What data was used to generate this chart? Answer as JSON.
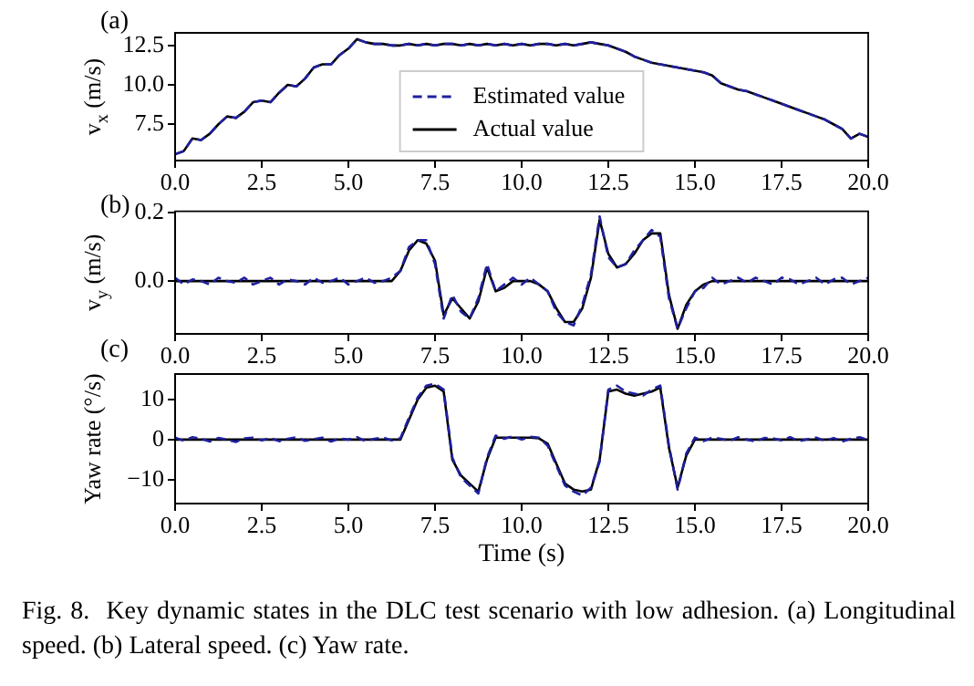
{
  "chart_data": [
    {
      "type": "line",
      "title": "(a)",
      "ylabel": "v$_{x}$ (m/s)",
      "legend": "bottom",
      "marker": "none",
      "x": [
        0,
        0.25,
        0.5,
        0.75,
        1,
        1.25,
        1.5,
        1.75,
        2,
        2.25,
        2.5,
        2.75,
        3,
        3.25,
        3.5,
        3.75,
        4,
        4.25,
        4.5,
        4.75,
        5,
        5.25,
        5.5,
        5.75,
        6,
        6.25,
        6.5,
        6.75,
        7,
        7.25,
        7.5,
        7.75,
        8,
        8.25,
        8.5,
        8.75,
        9,
        9.25,
        9.5,
        9.75,
        10,
        10.25,
        10.5,
        10.75,
        11,
        11.25,
        11.5,
        11.75,
        12,
        12.25,
        12.5,
        12.75,
        13,
        13.25,
        13.5,
        13.75,
        14,
        14.25,
        14.5,
        14.75,
        15,
        15.25,
        15.5,
        15.75,
        16,
        16.25,
        16.5,
        16.75,
        17,
        17.25,
        17.5,
        17.75,
        18,
        18.25,
        18.5,
        18.75,
        19,
        19.25,
        19.5,
        19.75,
        20
      ],
      "series": [
        {
          "name": "Estimated value",
          "color": "#2020a0",
          "line_style": "dashed",
          "values": [
            5.6,
            5.8,
            6.6,
            6.5,
            6.9,
            7.5,
            8.0,
            7.9,
            8.3,
            8.9,
            9.0,
            8.9,
            9.5,
            10.0,
            9.9,
            10.4,
            11.1,
            11.3,
            11.3,
            11.9,
            12.3,
            12.9,
            12.7,
            12.6,
            12.6,
            12.5,
            12.5,
            12.6,
            12.5,
            12.6,
            12.5,
            12.6,
            12.6,
            12.5,
            12.6,
            12.5,
            12.6,
            12.5,
            12.6,
            12.5,
            12.6,
            12.5,
            12.6,
            12.6,
            12.5,
            12.6,
            12.5,
            12.6,
            12.7,
            12.6,
            12.5,
            12.3,
            12.1,
            11.8,
            11.6,
            11.4,
            11.3,
            11.2,
            11.1,
            11.0,
            10.9,
            10.8,
            10.6,
            10.1,
            9.9,
            9.7,
            9.6,
            9.4,
            9.2,
            9.0,
            8.8,
            8.6,
            8.4,
            8.2,
            8.0,
            7.8,
            7.5,
            7.2,
            6.6,
            6.9,
            6.7
          ]
        },
        {
          "name": "Actual value",
          "color": "#000000",
          "line_style": "solid",
          "values": [
            5.6,
            5.8,
            6.6,
            6.5,
            6.9,
            7.5,
            8.0,
            7.9,
            8.3,
            8.9,
            9.0,
            8.9,
            9.5,
            10.0,
            9.9,
            10.4,
            11.1,
            11.3,
            11.3,
            11.9,
            12.3,
            12.9,
            12.7,
            12.6,
            12.6,
            12.5,
            12.5,
            12.6,
            12.5,
            12.6,
            12.5,
            12.6,
            12.6,
            12.5,
            12.6,
            12.5,
            12.6,
            12.5,
            12.6,
            12.5,
            12.6,
            12.5,
            12.6,
            12.6,
            12.5,
            12.6,
            12.5,
            12.6,
            12.7,
            12.6,
            12.5,
            12.3,
            12.1,
            11.8,
            11.6,
            11.4,
            11.3,
            11.2,
            11.1,
            11.0,
            10.9,
            10.8,
            10.6,
            10.1,
            9.9,
            9.7,
            9.6,
            9.4,
            9.2,
            9.0,
            8.8,
            8.6,
            8.4,
            8.2,
            8.0,
            7.8,
            7.5,
            7.2,
            6.6,
            6.9,
            6.7
          ]
        }
      ],
      "xlim": [
        0,
        20
      ],
      "xticks": [
        {
          "value": 0,
          "label": "0.0"
        },
        {
          "value": 2.5,
          "label": "2.5"
        },
        {
          "value": 5,
          "label": "5.0"
        },
        {
          "value": 7.5,
          "label": "7.5"
        },
        {
          "value": 10,
          "label": "10.0"
        },
        {
          "value": 12.5,
          "label": "12.5"
        },
        {
          "value": 15,
          "label": "15.0"
        },
        {
          "value": 17.5,
          "label": "17.5"
        },
        {
          "value": 20,
          "label": "20.0"
        }
      ],
      "ylim": [
        5.2,
        13.3
      ],
      "yticks": [
        {
          "value": 7.5,
          "label": "7.5"
        },
        {
          "value": 10,
          "label": "10.0"
        },
        {
          "value": 12.5,
          "label": "12.5"
        }
      ]
    },
    {
      "type": "line",
      "title": "(b)",
      "ylabel": "v$_{y}$ (m/s)",
      "marker": "none",
      "x": [
        0,
        0.25,
        0.5,
        0.75,
        1,
        1.25,
        1.5,
        1.75,
        2,
        2.25,
        2.5,
        2.75,
        3,
        3.25,
        3.5,
        3.75,
        4,
        4.25,
        4.5,
        4.75,
        5,
        5.25,
        5.5,
        5.75,
        6,
        6.25,
        6.5,
        6.75,
        7,
        7.25,
        7.5,
        7.75,
        8,
        8.25,
        8.5,
        8.75,
        9,
        9.25,
        9.5,
        9.75,
        10,
        10.25,
        10.5,
        10.75,
        11,
        11.25,
        11.5,
        11.75,
        12,
        12.25,
        12.5,
        12.75,
        13,
        13.25,
        13.5,
        13.75,
        14,
        14.25,
        14.5,
        14.75,
        15,
        15.25,
        15.5,
        15.75,
        16,
        16.25,
        16.5,
        16.75,
        17,
        17.25,
        17.5,
        17.75,
        18,
        18.25,
        18.5,
        18.75,
        19,
        19.25,
        19.5,
        19.75,
        20
      ],
      "series": [
        {
          "color": "#2020a0",
          "line_style": "dashed",
          "values": [
            0.01,
            -0.01,
            0.005,
            0.0,
            -0.01,
            0.01,
            0.0,
            -0.005,
            0.01,
            -0.01,
            0.0,
            0.01,
            -0.01,
            0.005,
            0.0,
            -0.01,
            0.01,
            -0.005,
            0.0,
            0.01,
            -0.01,
            0.0,
            0.01,
            -0.005,
            0.0,
            0.01,
            0.03,
            0.1,
            0.12,
            0.12,
            0.05,
            -0.11,
            -0.04,
            -0.09,
            -0.11,
            -0.05,
            0.05,
            -0.03,
            -0.01,
            0.01,
            -0.01,
            0.01,
            -0.01,
            -0.03,
            -0.09,
            -0.12,
            -0.13,
            -0.07,
            0.02,
            0.19,
            0.07,
            0.04,
            0.05,
            0.09,
            0.12,
            0.15,
            0.13,
            -0.05,
            -0.14,
            -0.08,
            -0.03,
            -0.02,
            0.01,
            -0.01,
            0.0,
            0.01,
            -0.005,
            0.01,
            0.0,
            -0.01,
            0.01,
            0.005,
            -0.01,
            0.0,
            0.01,
            -0.01,
            0.005,
            0.01,
            -0.01,
            0.0,
            0.01
          ]
        },
        {
          "color": "#000000",
          "line_style": "solid",
          "values": [
            0,
            0,
            0,
            0,
            0,
            0,
            0,
            0,
            0,
            0,
            0,
            0,
            0,
            0,
            0,
            0,
            0,
            0,
            0,
            0,
            0,
            0,
            0,
            0,
            0,
            0,
            0.03,
            0.09,
            0.12,
            0.11,
            0.06,
            -0.1,
            -0.05,
            -0.08,
            -0.11,
            -0.06,
            0.04,
            -0.03,
            -0.02,
            0.0,
            0.0,
            0.0,
            -0.01,
            -0.03,
            -0.08,
            -0.12,
            -0.12,
            -0.08,
            0.01,
            0.18,
            0.08,
            0.04,
            0.05,
            0.08,
            0.12,
            0.14,
            0.14,
            -0.04,
            -0.14,
            -0.07,
            -0.03,
            -0.01,
            0,
            0,
            0,
            0,
            0,
            0,
            0,
            0,
            0,
            0,
            0,
            0,
            0,
            0,
            0,
            0,
            0,
            0,
            0
          ]
        }
      ],
      "xlim": [
        0,
        20
      ],
      "xticks": [
        {
          "value": 0,
          "label": "0.0"
        },
        {
          "value": 2.5,
          "label": "2.5"
        },
        {
          "value": 5,
          "label": "5.0"
        },
        {
          "value": 7.5,
          "label": "7.5"
        },
        {
          "value": 10,
          "label": "10.0"
        },
        {
          "value": 12.5,
          "label": "12.5"
        },
        {
          "value": 15,
          "label": "15.0"
        },
        {
          "value": 17.5,
          "label": "17.5"
        },
        {
          "value": 20,
          "label": "20.0"
        }
      ],
      "ylim": [
        -0.155,
        0.205
      ],
      "yticks": [
        {
          "value": 0,
          "label": "0.0"
        },
        {
          "value": 0.2,
          "label": "0.2"
        }
      ]
    },
    {
      "type": "line",
      "title": "(c)",
      "xlabel": "Time (s)",
      "ylabel": "Yaw rate (°/s)",
      "marker": "none",
      "x": [
        0,
        0.25,
        0.5,
        0.75,
        1,
        1.25,
        1.5,
        1.75,
        2,
        2.25,
        2.5,
        2.75,
        3,
        3.25,
        3.5,
        3.75,
        4,
        4.25,
        4.5,
        4.75,
        5,
        5.25,
        5.5,
        5.75,
        6,
        6.25,
        6.5,
        6.75,
        7,
        7.25,
        7.5,
        7.75,
        8,
        8.25,
        8.5,
        8.75,
        9,
        9.25,
        9.5,
        9.75,
        10,
        10.25,
        10.5,
        10.75,
        11,
        11.25,
        11.5,
        11.75,
        12,
        12.25,
        12.5,
        12.75,
        13,
        13.25,
        13.5,
        13.75,
        14,
        14.25,
        14.5,
        14.75,
        15,
        15.25,
        15.5,
        15.75,
        16,
        16.25,
        16.5,
        16.75,
        17,
        17.25,
        17.5,
        17.75,
        18,
        18.25,
        18.5,
        18.75,
        19,
        19.25,
        19.5,
        19.75,
        20
      ],
      "series": [
        {
          "color": "#2020a0",
          "line_style": "dashed",
          "values": [
            0.5,
            -0.3,
            0.6,
            0.2,
            -0.5,
            0.4,
            0.0,
            -0.6,
            0.3,
            0.5,
            -0.2,
            0.4,
            -0.4,
            0.2,
            0.6,
            -0.3,
            0.1,
            0.5,
            -0.5,
            0.3,
            0.0,
            0.6,
            -0.4,
            0.2,
            0.5,
            -0.2,
            0.3,
            5.5,
            10.5,
            13.5,
            14,
            12.5,
            -4.5,
            -9.5,
            -11.5,
            -13.5,
            -4.5,
            1,
            0.2,
            0.8,
            0.0,
            0.7,
            0.5,
            -1.5,
            -6.5,
            -11.5,
            -13,
            -14,
            -12,
            -5.5,
            12.5,
            13.5,
            12,
            11.5,
            11,
            12.5,
            13.5,
            -1.5,
            -12.5,
            -3.5,
            0.5,
            -0.4,
            0.5,
            0.2,
            -0.3,
            0.6,
            0.0,
            -0.5,
            0.4,
            0.3,
            -0.2,
            0.6,
            -0.4,
            0.1,
            0.5,
            -0.3,
            0.4,
            -0.5,
            0.2,
            0.6,
            -0.1
          ]
        },
        {
          "color": "#000000",
          "line_style": "solid",
          "values": [
            0,
            0,
            0,
            0,
            0,
            0,
            0,
            0,
            0,
            0,
            0,
            0,
            0,
            0,
            0,
            0,
            0,
            0,
            0,
            0,
            0,
            0,
            0,
            0,
            0,
            0,
            0,
            5,
            10,
            13,
            13.5,
            12,
            -5,
            -9,
            -11,
            -13,
            -5,
            0.5,
            0.5,
            0.5,
            0.5,
            0.5,
            0.3,
            -1,
            -6,
            -11,
            -12.5,
            -13,
            -12.5,
            -5,
            12,
            12.5,
            11.5,
            11,
            11.5,
            12,
            13,
            -2,
            -12,
            -4,
            0,
            0,
            0,
            0,
            0,
            0,
            0,
            0,
            0,
            0,
            0,
            0,
            0,
            0,
            0,
            0,
            0,
            0,
            0,
            0,
            0
          ]
        }
      ],
      "xlim": [
        0,
        20
      ],
      "xticks": [
        {
          "value": 0,
          "label": "0.0"
        },
        {
          "value": 2.5,
          "label": "2.5"
        },
        {
          "value": 5,
          "label": "5.0"
        },
        {
          "value": 7.5,
          "label": "7.5"
        },
        {
          "value": 10,
          "label": "10.0"
        },
        {
          "value": 12.5,
          "label": "12.5"
        },
        {
          "value": 15,
          "label": "15.0"
        },
        {
          "value": 17.5,
          "label": "17.5"
        },
        {
          "value": 20,
          "label": "20.0"
        }
      ],
      "ylim": [
        -16,
        16.4
      ],
      "yticks": [
        {
          "value": -10,
          "label": "−10"
        },
        {
          "value": 0,
          "label": "0"
        },
        {
          "value": 10,
          "label": "10"
        }
      ],
      "annotations": [
        "Fig. 8.  Key dynamic states in the DLC test scenario with low adhesion. (a) Longitudinal speed. (b) Lateral speed. (c) Yaw rate."
      ]
    }
  ]
}
